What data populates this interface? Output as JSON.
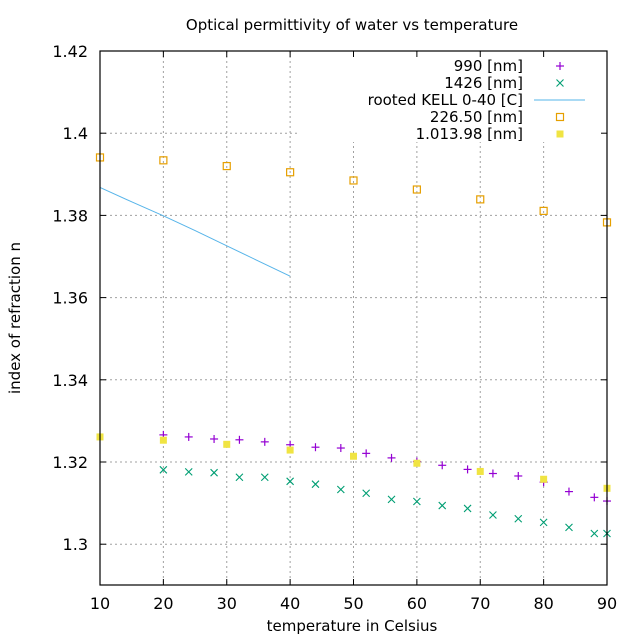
{
  "chart_data": {
    "type": "scatter",
    "title": "Optical permittivity of water vs temperature",
    "xlabel": "temperature in Celsius",
    "ylabel": "index of refraction n",
    "xlim": [
      10,
      90
    ],
    "ylim": [
      1.29,
      1.42
    ],
    "xticks": [
      10,
      20,
      30,
      40,
      50,
      60,
      70,
      80,
      90
    ],
    "xtick_labels": [
      "10",
      "20",
      "30",
      "40",
      "50",
      "60",
      "70",
      "80",
      "90"
    ],
    "yticks": [
      1.3,
      1.32,
      1.34,
      1.36,
      1.38,
      1.4,
      1.42
    ],
    "ytick_labels": [
      "1.3",
      "1.32",
      "1.34",
      "1.36",
      "1.38",
      "1.4",
      "1.42"
    ],
    "grid": true,
    "legend_position": "top-right",
    "series": [
      {
        "name": "990 [nm]",
        "marker": "plus",
        "color": "#9400d3",
        "x": [
          20,
          24,
          28,
          32,
          36,
          40,
          44,
          48,
          52,
          56,
          60,
          64,
          68,
          72,
          76,
          80,
          84,
          88,
          90
        ],
        "y": [
          1.3266,
          1.3261,
          1.3256,
          1.3254,
          1.3249,
          1.3242,
          1.3236,
          1.3234,
          1.3221,
          1.321,
          1.3201,
          1.3192,
          1.3182,
          1.3172,
          1.3166,
          1.3151,
          1.3128,
          1.3114,
          1.3105
        ]
      },
      {
        "name": "1426 [nm]",
        "marker": "cross",
        "color": "#009e73",
        "x": [
          20,
          24,
          28,
          32,
          36,
          40,
          44,
          48,
          52,
          56,
          60,
          64,
          68,
          72,
          76,
          80,
          84,
          88,
          90
        ],
        "y": [
          1.3181,
          1.3176,
          1.3174,
          1.3163,
          1.3163,
          1.3153,
          1.3146,
          1.3133,
          1.3124,
          1.3109,
          1.3104,
          1.3094,
          1.3087,
          1.3071,
          1.3062,
          1.3053,
          1.3041,
          1.3026,
          1.3026
        ]
      },
      {
        "name": "rooted KELL 0-40 [C]",
        "marker": "line",
        "color": "#56b4e9",
        "x": [
          10,
          15,
          20,
          25,
          30,
          35,
          40
        ],
        "y": [
          1.3868,
          1.3833,
          1.3799,
          1.3763,
          1.3726,
          1.3689,
          1.3652
        ]
      },
      {
        "name": "226.50 [nm]",
        "marker": "open-square",
        "color": "#e69f00",
        "x": [
          10,
          20,
          30,
          40,
          50,
          60,
          70,
          80,
          90
        ],
        "y": [
          1.3941,
          1.3934,
          1.392,
          1.3905,
          1.3885,
          1.3863,
          1.3839,
          1.3811,
          1.3783
        ]
      },
      {
        "name": "1.013.98 [nm]",
        "marker": "filled-square",
        "color": "#f0e442",
        "x": [
          10,
          20,
          30,
          40,
          50,
          60,
          70,
          80,
          90
        ],
        "y": [
          1.3261,
          1.3253,
          1.3243,
          1.3229,
          1.3214,
          1.3197,
          1.3177,
          1.3158,
          1.3136
        ]
      }
    ]
  }
}
